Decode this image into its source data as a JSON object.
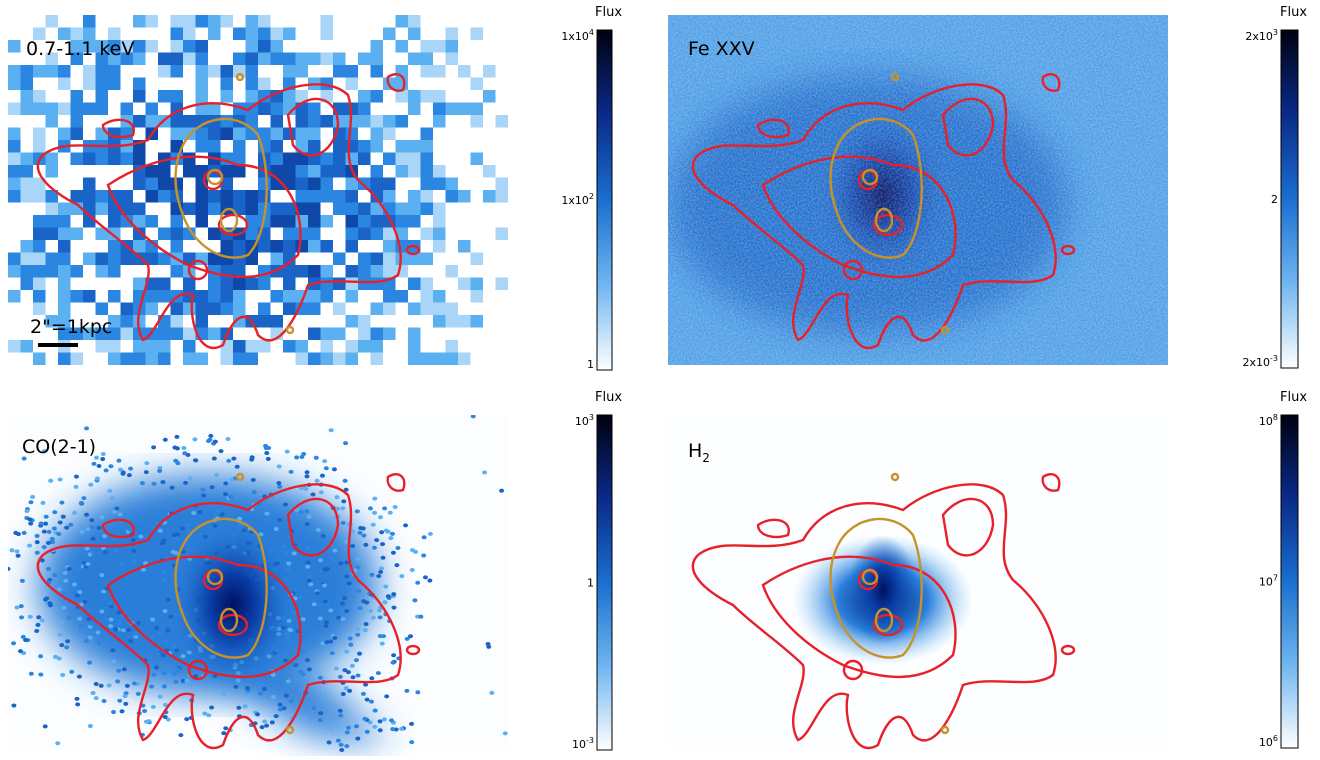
{
  "panels": [
    {
      "label": {
        "text": "0.7-1.1 keV"
      },
      "scale_bar": "2\"=1kpc",
      "colorbar": {
        "title": "Flux",
        "ticks": [
          {
            "base": "1x10",
            "exp": "4"
          },
          {
            "base": "1x10",
            "exp": "2"
          },
          {
            "base": "1"
          }
        ]
      }
    },
    {
      "label": {
        "text": "Fe XXV"
      },
      "colorbar": {
        "title": "Flux",
        "ticks": [
          {
            "base": "2x10",
            "exp": "3"
          },
          {
            "base": "2"
          },
          {
            "base": "2x10",
            "exp": "-3"
          }
        ]
      }
    },
    {
      "label": {
        "text": "CO(2-1)"
      },
      "colorbar": {
        "title": "Flux",
        "ticks": [
          {
            "base": "10",
            "exp": "3"
          },
          {
            "base": "1"
          },
          {
            "base": "10",
            "exp": "-3"
          }
        ]
      }
    },
    {
      "label": {
        "text": "H",
        "sub": "2"
      },
      "colorbar": {
        "title": "Flux",
        "ticks": [
          {
            "base": "10",
            "exp": "8"
          },
          {
            "base": "10",
            "exp": "7"
          },
          {
            "base": "10",
            "exp": "6"
          }
        ]
      }
    }
  ]
}
